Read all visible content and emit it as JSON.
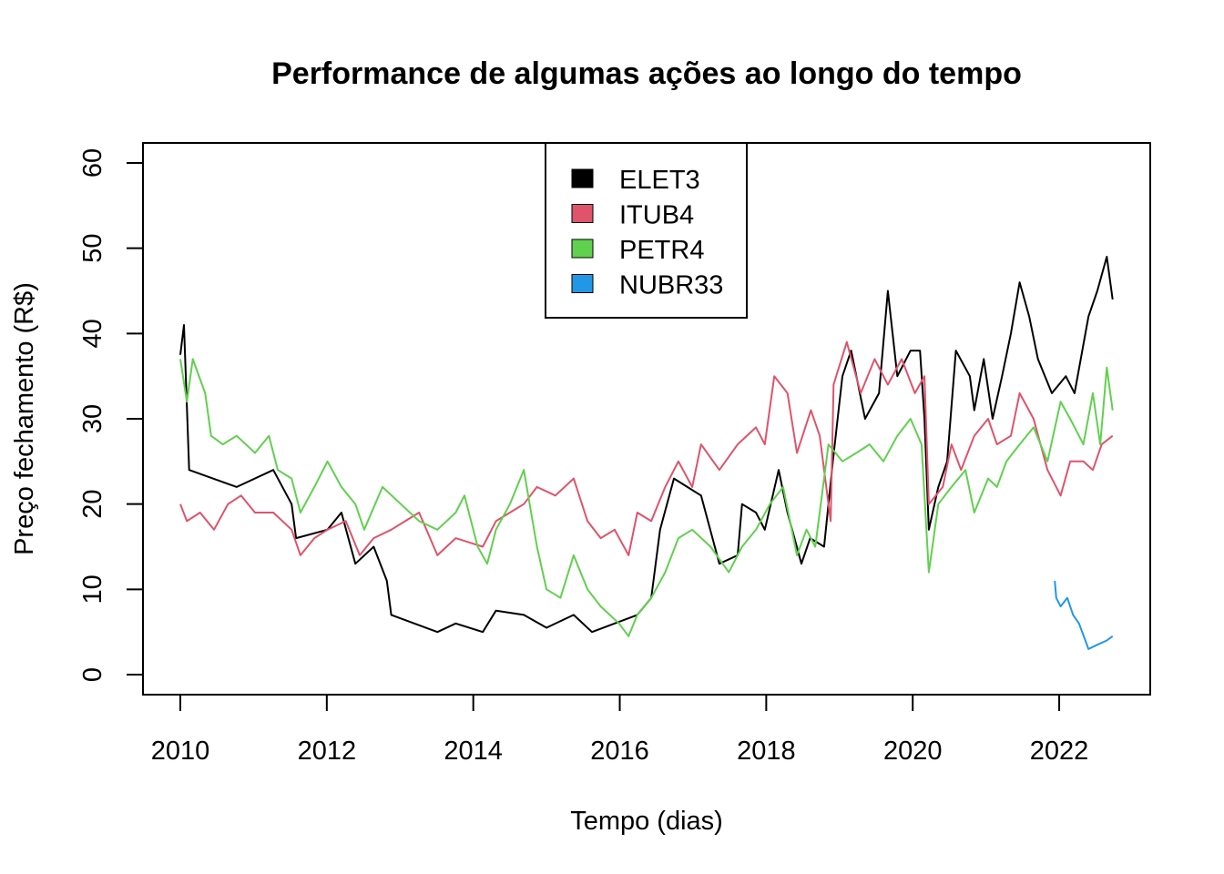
{
  "chart_data": {
    "type": "line",
    "title": "Performance de algumas ações ao longo do tempo",
    "xlabel": "Tempo (dias)",
    "ylabel": "Preço fechamento (R$)",
    "xlim": [
      2009.5,
      2023.2
    ],
    "ylim": [
      -2,
      62
    ],
    "x_ticks": [
      2010,
      2012,
      2014,
      2016,
      2018,
      2020,
      2022
    ],
    "x_tick_labels": [
      "2010",
      "2012",
      "2014",
      "2016",
      "2018",
      "2020",
      "2022"
    ],
    "y_ticks": [
      0,
      10,
      20,
      30,
      40,
      50,
      60
    ],
    "y_tick_labels": [
      "0",
      "10",
      "20",
      "30",
      "40",
      "50",
      "60"
    ],
    "grid": false,
    "legend_position": "top-center",
    "series": [
      {
        "name": "ELET3",
        "color": "#000000",
        "x": [
          2010.0,
          2010.05,
          2010.12,
          2010.77,
          2011.27,
          2011.52,
          2011.58,
          2012.01,
          2012.2,
          2012.39,
          2012.64,
          2012.82,
          2012.88,
          2013.51,
          2013.76,
          2014.13,
          2014.31,
          2014.69,
          2015.0,
          2015.37,
          2015.62,
          2016.24,
          2016.43,
          2016.55,
          2016.74,
          2017.11,
          2017.36,
          2017.61,
          2017.67,
          2017.86,
          2017.98,
          2018.17,
          2018.29,
          2018.48,
          2018.6,
          2018.79,
          2018.91,
          2019.04,
          2019.16,
          2019.35,
          2019.54,
          2019.66,
          2019.79,
          2019.97,
          2020.1,
          2020.16,
          2020.22,
          2020.35,
          2020.47,
          2020.59,
          2020.78,
          2020.84,
          2020.97,
          2021.09,
          2021.22,
          2021.34,
          2021.46,
          2021.59,
          2021.71,
          2021.9,
          2022.09,
          2022.21,
          2022.4,
          2022.52,
          2022.65,
          2022.73
        ],
        "y": [
          37.5,
          41,
          24,
          22,
          24,
          20,
          16,
          17,
          19,
          13,
          15,
          11,
          7,
          5,
          6,
          5,
          7.5,
          7,
          5.5,
          7,
          5,
          7,
          9,
          17,
          23,
          21,
          13,
          14,
          20,
          19,
          17,
          24,
          19,
          13,
          16,
          15,
          25,
          35,
          38,
          30,
          33,
          45,
          35,
          38,
          38,
          30,
          17,
          22,
          25,
          38,
          35,
          31,
          37,
          30,
          35,
          40,
          46,
          42,
          37,
          33,
          35,
          33,
          42,
          45,
          49,
          44
        ]
      },
      {
        "name": "ITUB4",
        "color": "#DF536B",
        "x": [
          2010.0,
          2010.09,
          2010.27,
          2010.46,
          2010.65,
          2010.83,
          2011.02,
          2011.27,
          2011.52,
          2011.64,
          2011.83,
          2012.01,
          2012.26,
          2012.45,
          2012.64,
          2012.88,
          2013.07,
          2013.26,
          2013.51,
          2013.76,
          2014.13,
          2014.31,
          2014.5,
          2014.69,
          2014.87,
          2015.12,
          2015.37,
          2015.56,
          2015.74,
          2015.93,
          2016.12,
          2016.24,
          2016.43,
          2016.62,
          2016.8,
          2016.99,
          2017.11,
          2017.36,
          2017.61,
          2017.86,
          2017.98,
          2018.11,
          2018.29,
          2018.42,
          2018.61,
          2018.73,
          2018.88,
          2018.92,
          2019.1,
          2019.29,
          2019.48,
          2019.66,
          2019.85,
          2020.03,
          2020.16,
          2020.22,
          2020.41,
          2020.53,
          2020.66,
          2020.84,
          2021.03,
          2021.15,
          2021.34,
          2021.46,
          2021.65,
          2021.84,
          2022.02,
          2022.15,
          2022.33,
          2022.46,
          2022.58,
          2022.73
        ],
        "y": [
          20,
          18,
          19,
          17,
          20,
          21,
          19,
          19,
          17,
          14,
          16,
          17,
          18,
          14,
          16,
          17,
          18,
          19,
          14,
          16,
          15,
          18,
          19,
          20,
          22,
          21,
          23,
          18,
          16,
          17,
          14,
          19,
          18,
          22,
          25,
          22,
          27,
          24,
          27,
          29,
          27,
          35,
          33,
          26,
          31,
          28,
          18,
          34,
          39,
          33,
          37,
          34,
          37,
          33,
          35,
          20,
          22,
          27,
          24,
          28,
          30,
          27,
          28,
          33,
          30,
          24,
          21,
          25,
          25,
          24,
          27,
          28
        ]
      },
      {
        "name": "PETR4",
        "color": "#61D04F",
        "x": [
          2010.0,
          2010.09,
          2010.17,
          2010.34,
          2010.42,
          2010.58,
          2010.77,
          2011.02,
          2011.21,
          2011.33,
          2011.52,
          2011.64,
          2011.83,
          2012.01,
          2012.2,
          2012.39,
          2012.51,
          2012.76,
          2013.01,
          2013.26,
          2013.51,
          2013.76,
          2013.88,
          2014.06,
          2014.19,
          2014.31,
          2014.5,
          2014.69,
          2014.87,
          2015.0,
          2015.19,
          2015.37,
          2015.56,
          2015.74,
          2015.99,
          2016.12,
          2016.24,
          2016.43,
          2016.62,
          2016.8,
          2016.99,
          2017.24,
          2017.49,
          2017.67,
          2017.86,
          2018.05,
          2018.23,
          2018.42,
          2018.55,
          2018.67,
          2018.85,
          2019.04,
          2019.23,
          2019.41,
          2019.6,
          2019.79,
          2019.97,
          2020.12,
          2020.22,
          2020.35,
          2020.53,
          2020.72,
          2020.84,
          2021.03,
          2021.15,
          2021.28,
          2021.46,
          2021.65,
          2021.84,
          2022.02,
          2022.15,
          2022.33,
          2022.46,
          2022.56,
          2022.65,
          2022.73
        ],
        "y": [
          37,
          32,
          37,
          33,
          28,
          27,
          28,
          26,
          28,
          24,
          23,
          19,
          22,
          25,
          22,
          20,
          17,
          22,
          20,
          18,
          17,
          19,
          21,
          15,
          13,
          17,
          20,
          24,
          15,
          10,
          9,
          14,
          10,
          8,
          6,
          4.5,
          7,
          9,
          12,
          16,
          17,
          15,
          12,
          15,
          17,
          20,
          22,
          14,
          17,
          15,
          27,
          25,
          26,
          27,
          25,
          28,
          30,
          27,
          12,
          20,
          22,
          24,
          19,
          23,
          22,
          25,
          27,
          29,
          25,
          32,
          30,
          27,
          33,
          27,
          36,
          31
        ]
      },
      {
        "name": "NUBR33",
        "color": "#2297E6",
        "x": [
          2021.94,
          2021.96,
          2022.02,
          2022.11,
          2022.19,
          2022.27,
          2022.4,
          2022.52,
          2022.65,
          2022.73
        ],
        "y": [
          11,
          9,
          8,
          9,
          7,
          6,
          3,
          3.5,
          4,
          4.5
        ]
      }
    ]
  }
}
